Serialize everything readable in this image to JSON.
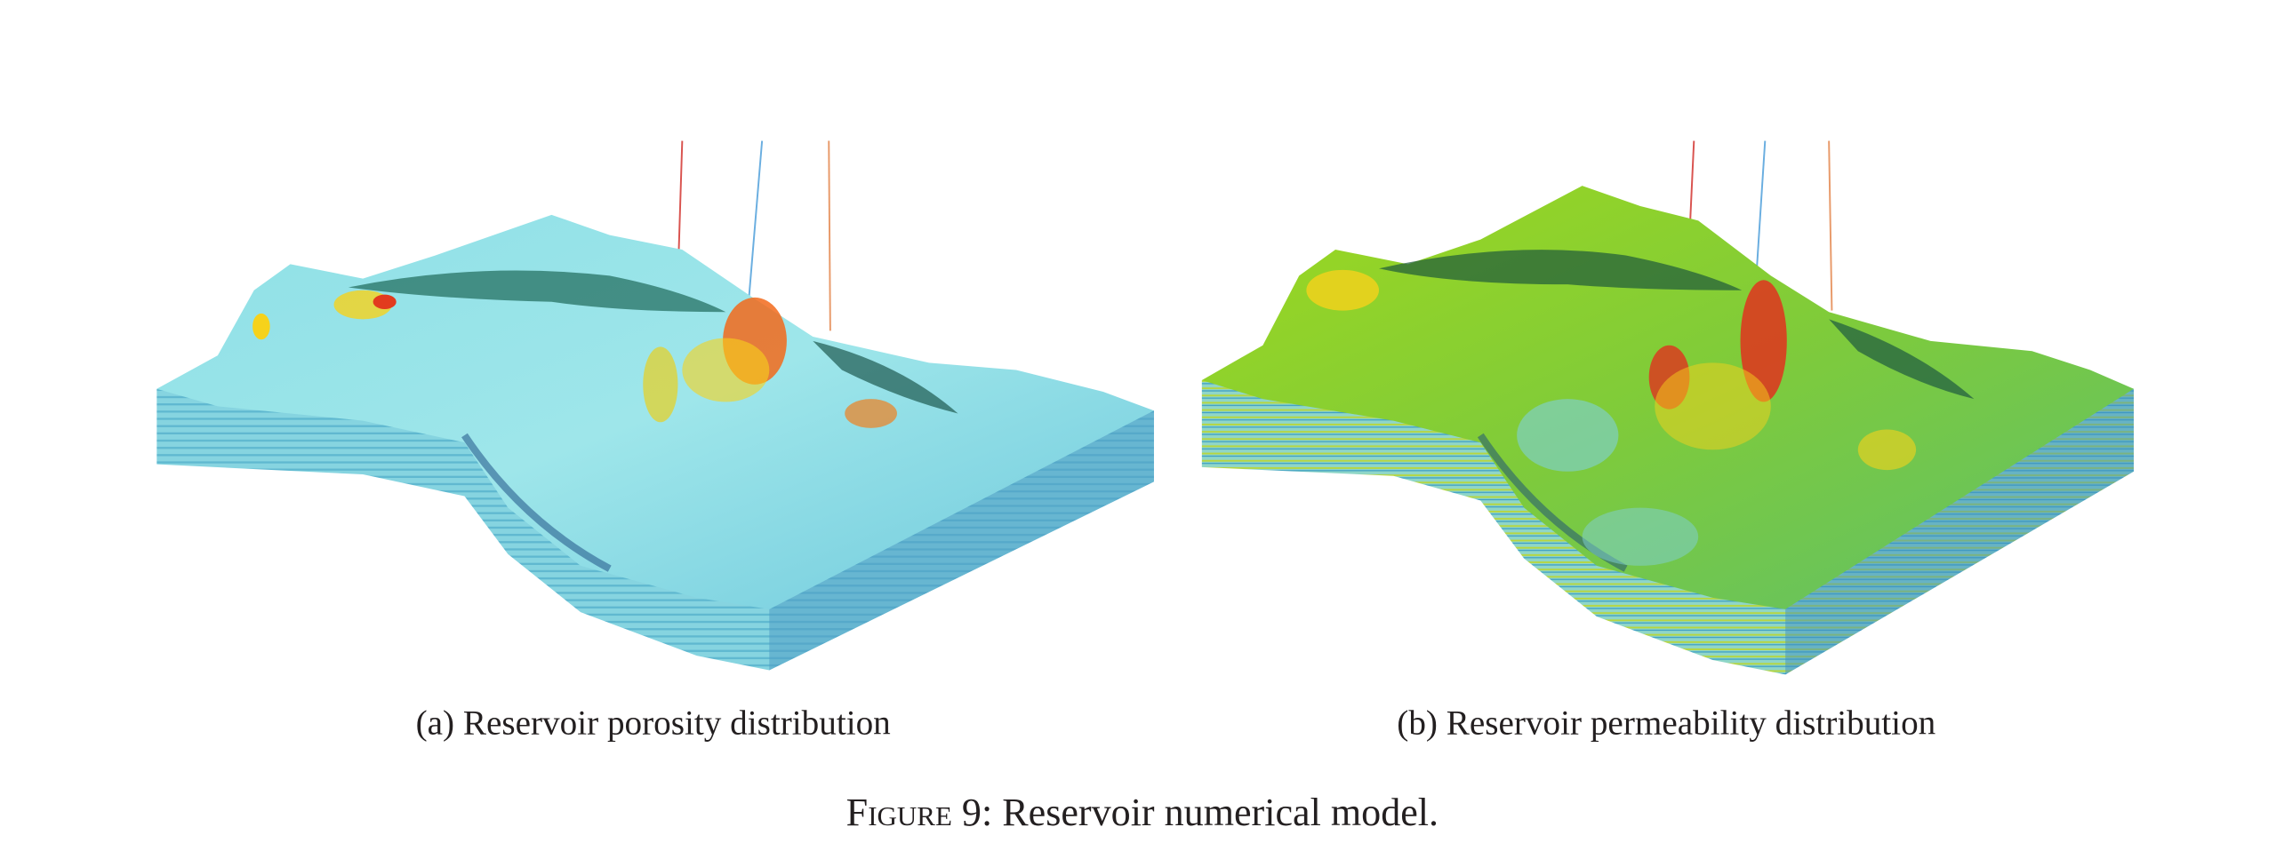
{
  "figure": {
    "panels": [
      {
        "caption": "(a) Reservoir porosity distribution"
      },
      {
        "caption": "(b) Reservoir permeability distribution"
      }
    ],
    "label": "Figure 9:",
    "caption": "Reservoir numerical model."
  }
}
